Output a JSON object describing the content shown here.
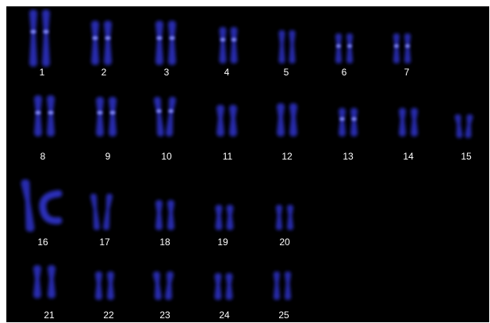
{
  "image": {
    "background_color": "#000000",
    "stain_color": "#2a2fb8",
    "band_color": "#8c93ff",
    "chromosomes": [
      {
        "label": "1"
      },
      {
        "label": "2"
      },
      {
        "label": "3"
      },
      {
        "label": "4"
      },
      {
        "label": "5"
      },
      {
        "label": "6"
      },
      {
        "label": "7"
      },
      {
        "label": "8"
      },
      {
        "label": "9"
      },
      {
        "label": "10"
      },
      {
        "label": "11"
      },
      {
        "label": "12"
      },
      {
        "label": "13"
      },
      {
        "label": "14"
      },
      {
        "label": "15"
      },
      {
        "label": "16"
      },
      {
        "label": "17"
      },
      {
        "label": "18"
      },
      {
        "label": "19"
      },
      {
        "label": "20"
      },
      {
        "label": "21"
      },
      {
        "label": "22"
      },
      {
        "label": "23"
      },
      {
        "label": "24"
      },
      {
        "label": "25"
      }
    ]
  }
}
